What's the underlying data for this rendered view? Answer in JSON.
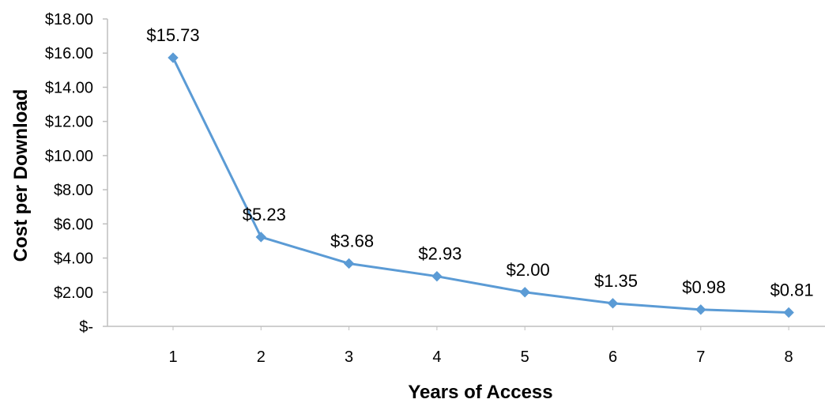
{
  "chart_data": {
    "type": "line",
    "title": "",
    "xlabel": "Years of Access",
    "ylabel": "Cost per Download",
    "categories": [
      "1",
      "2",
      "3",
      "4",
      "5",
      "6",
      "7",
      "8"
    ],
    "series": [
      {
        "values": [
          15.73,
          5.23,
          3.68,
          2.93,
          2.0,
          1.35,
          0.98,
          0.81
        ],
        "data_labels": [
          "$15.73",
          "$5.23",
          "$3.68",
          "$2.93",
          "$2.00",
          "$1.35",
          "$0.98",
          "$0.81"
        ],
        "color": "#5B9BD5",
        "marker": "diamond"
      }
    ],
    "ylim": [
      0,
      18
    ],
    "y_ticks": [
      {
        "value": 0,
        "label": "$-"
      },
      {
        "value": 2,
        "label": "$2.00"
      },
      {
        "value": 4,
        "label": "$4.00"
      },
      {
        "value": 6,
        "label": "$6.00"
      },
      {
        "value": 8,
        "label": "$8.00"
      },
      {
        "value": 10,
        "label": "$10.00"
      },
      {
        "value": 12,
        "label": "$12.00"
      },
      {
        "value": 14,
        "label": "$14.00"
      },
      {
        "value": 16,
        "label": "$16.00"
      },
      {
        "value": 18,
        "label": "$18.00"
      }
    ],
    "grid": false,
    "legend": "none",
    "axis_color": "#BFBFBF"
  }
}
